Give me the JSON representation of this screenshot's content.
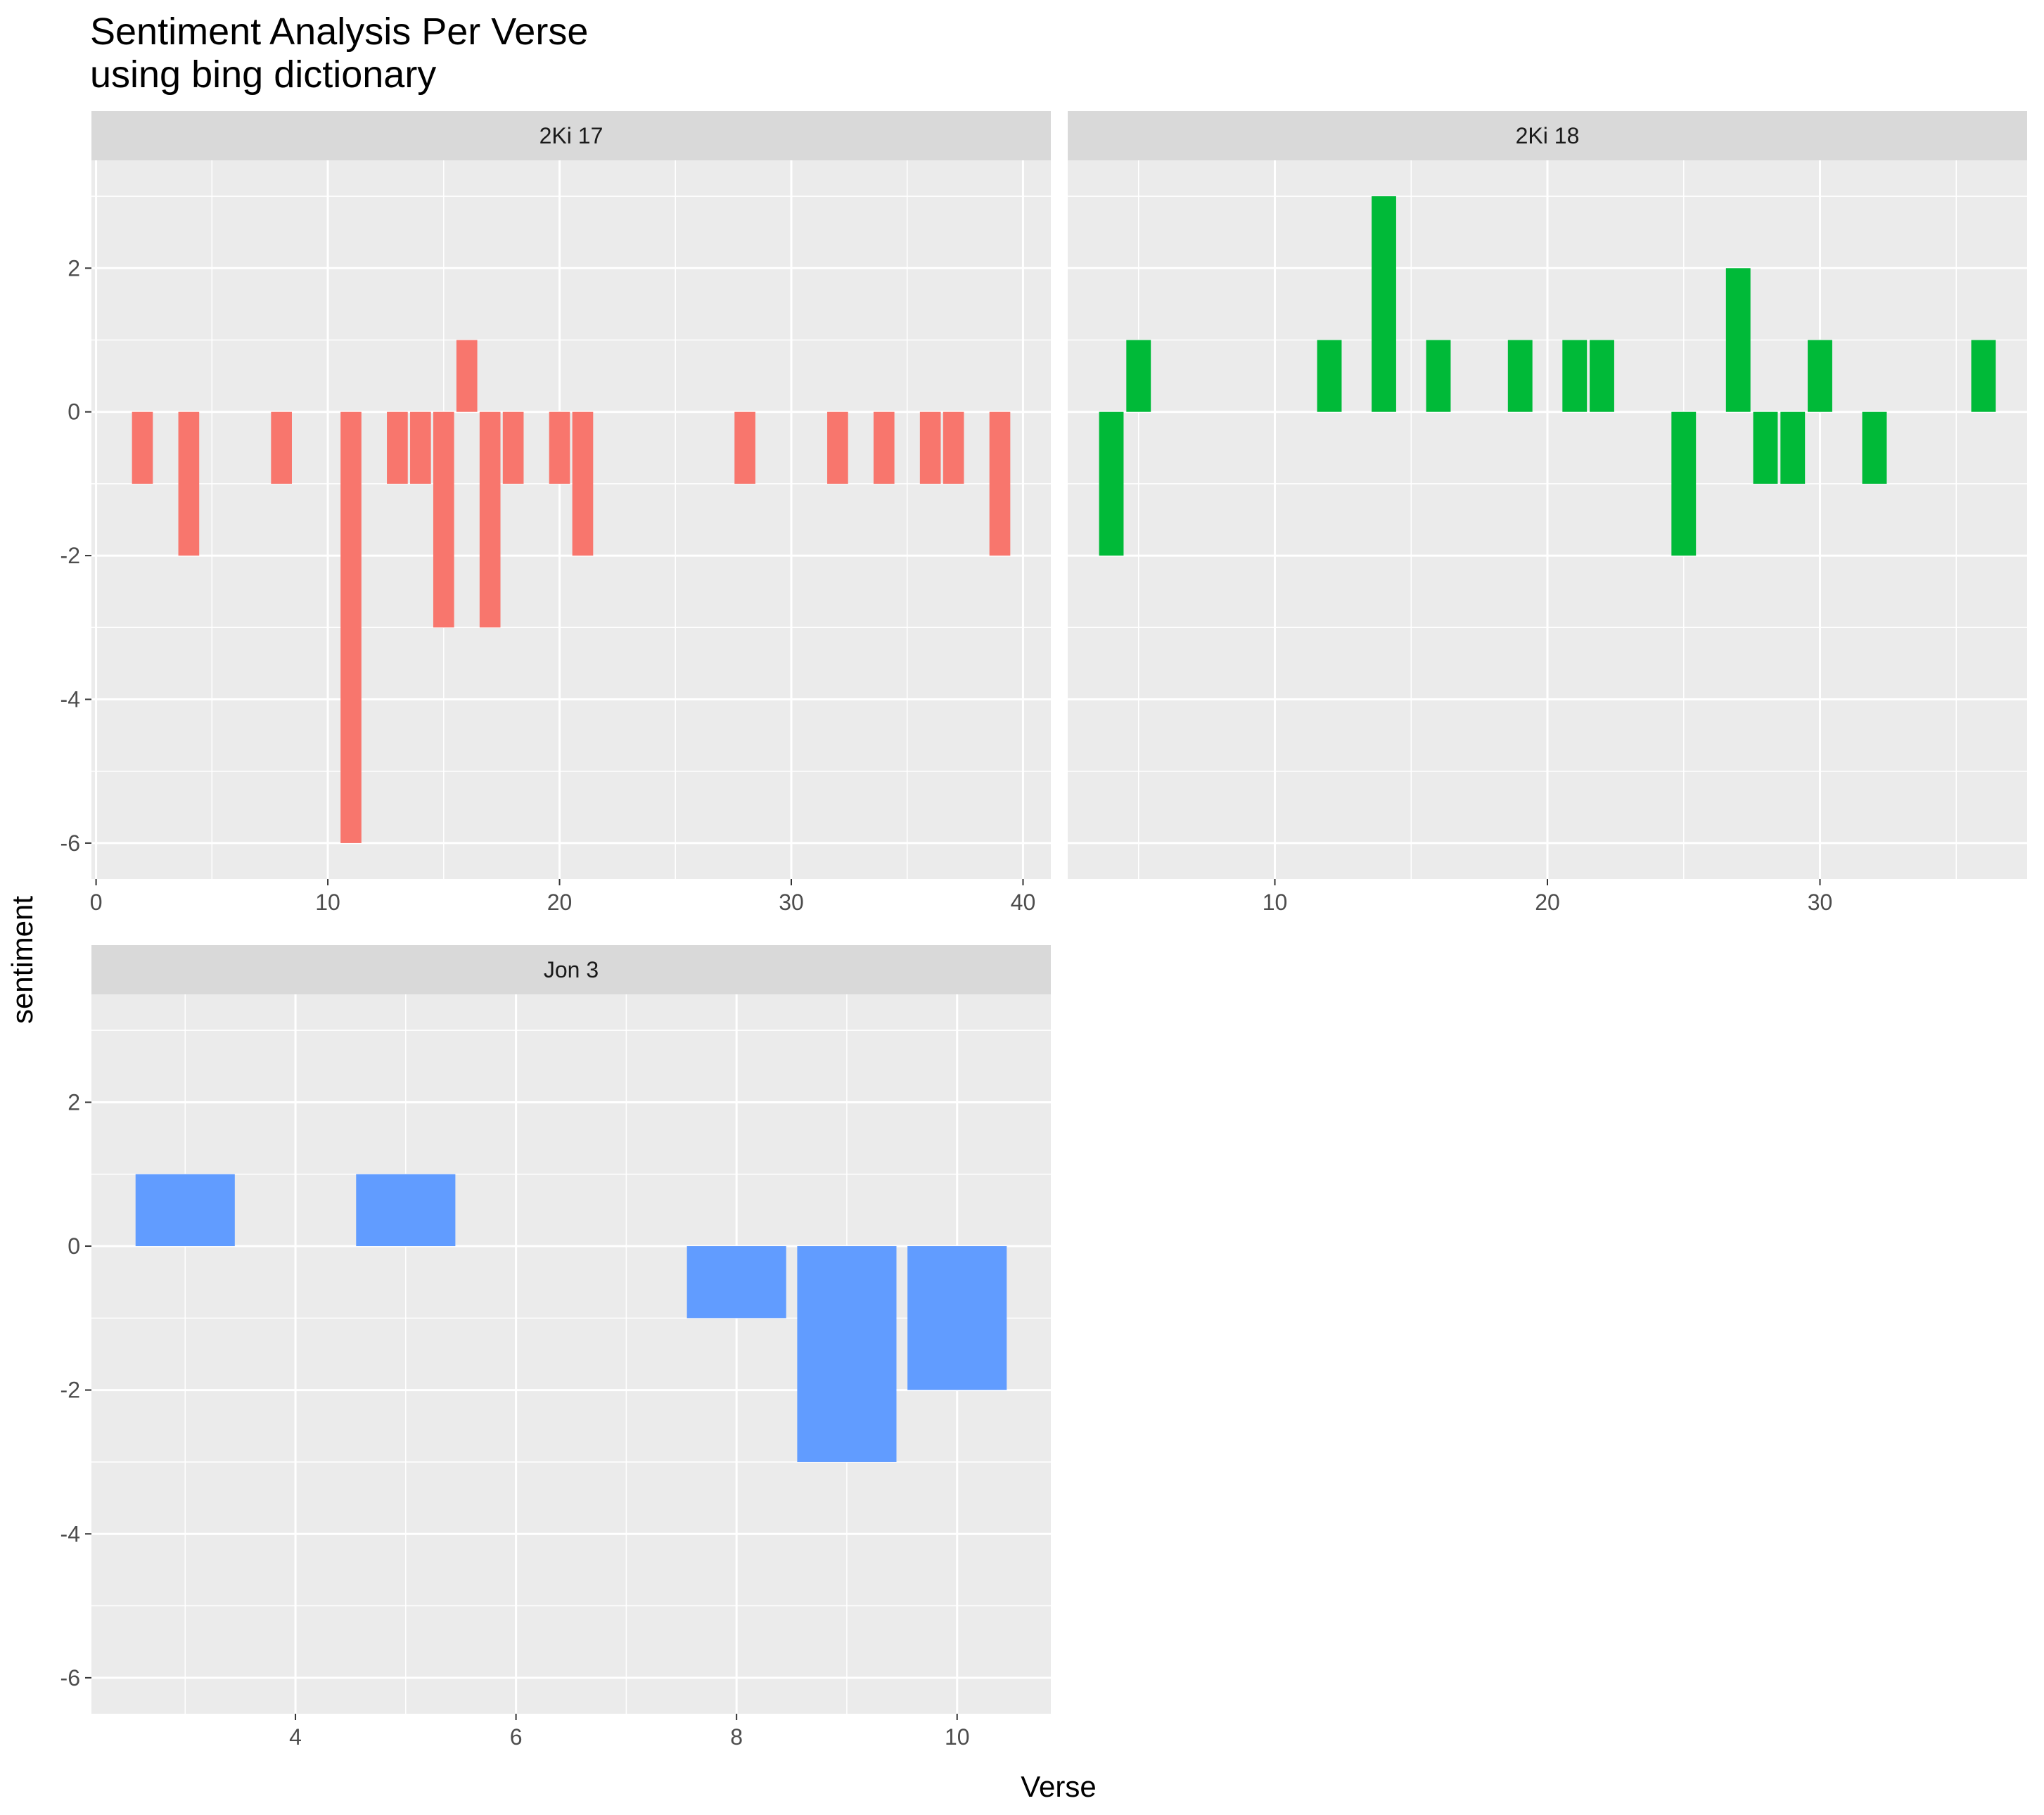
{
  "chart_data": {
    "type": "bar",
    "title": "Sentiment Analysis Per Verse",
    "subtitle": "using bing dictionary",
    "xlabel": "Verse",
    "ylabel": "sentiment",
    "ylim": [
      -6.5,
      3.5
    ],
    "y_ticks": [
      -6,
      -4,
      -2,
      0,
      2
    ],
    "grid": true,
    "legend": "none",
    "panels": [
      {
        "name": "2Ki 17",
        "color": "#F8766D",
        "xlim": [
          -0.2,
          41.2
        ],
        "x_ticks": [
          0,
          10,
          20,
          30,
          40
        ],
        "x": [
          2,
          4,
          8,
          11,
          13,
          14,
          15,
          16,
          17,
          18,
          20,
          21,
          28,
          32,
          34,
          36,
          37,
          39
        ],
        "values": [
          -1,
          -2,
          -1,
          -6,
          -1,
          -1,
          -3,
          1,
          -3,
          -1,
          -1,
          -2,
          -1,
          -1,
          -1,
          -1,
          -1,
          -2
        ]
      },
      {
        "name": "2Ki 18",
        "color": "#00BA38",
        "xlim": [
          2.4,
          37.6
        ],
        "x_ticks": [
          10,
          20,
          30
        ],
        "x": [
          4,
          5,
          12,
          14,
          16,
          19,
          21,
          22,
          25,
          27,
          28,
          29,
          30,
          32,
          36
        ],
        "values": [
          -2,
          1,
          1,
          3,
          1,
          1,
          1,
          1,
          -2,
          2,
          -1,
          -1,
          1,
          -1,
          1
        ]
      },
      {
        "name": "Jon 3",
        "color": "#619CFF",
        "xlim": [
          2.15,
          10.85
        ],
        "x_ticks": [
          4,
          6,
          8,
          10
        ],
        "x": [
          3,
          5,
          8,
          9,
          10
        ],
        "values": [
          1,
          1,
          -1,
          -3,
          -2
        ]
      }
    ]
  },
  "colors": {
    "panel_bg": "#EBEBEB",
    "strip_bg": "#D9D9D9",
    "grid": "#FFFFFF",
    "tick": "#333333"
  }
}
